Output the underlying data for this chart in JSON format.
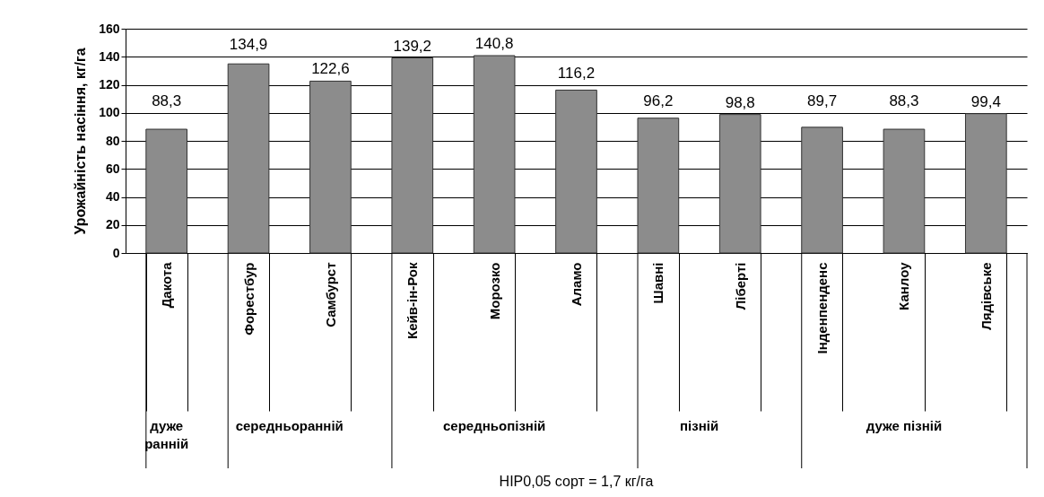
{
  "chart_data": {
    "type": "bar",
    "ylabel": "Урожайність насіння, кг/га",
    "categories": [
      "Дакота",
      "Форестбур",
      "Самбурст",
      "Кейв-ін-Рок",
      "Морозко",
      "Аламо",
      "Шавні",
      "Ліберті",
      "Інденпенденс",
      "Канлоу",
      "Лядівське"
    ],
    "values": [
      88.3,
      134.9,
      122.6,
      139.2,
      140.8,
      116.2,
      96.2,
      98.8,
      89.7,
      88.3,
      99.4
    ],
    "color": "#8c8c8c",
    "ylim": [
      0,
      160
    ],
    "yticks": [
      0,
      20,
      40,
      60,
      80,
      100,
      120,
      140,
      160
    ],
    "grid": "y",
    "value_labels": [
      "88,3",
      "134,9",
      "122,6",
      "139,2",
      "140,8",
      "116,2",
      "96,2",
      "98,8",
      "89,7",
      "88,3",
      "99,4"
    ],
    "annotations": [
      "дуже ранній",
      "середньоранній",
      "середньопізній",
      "пізній",
      "дуже пізній",
      "НІР0,05 сорт = 1,7 кг/га"
    ]
  }
}
